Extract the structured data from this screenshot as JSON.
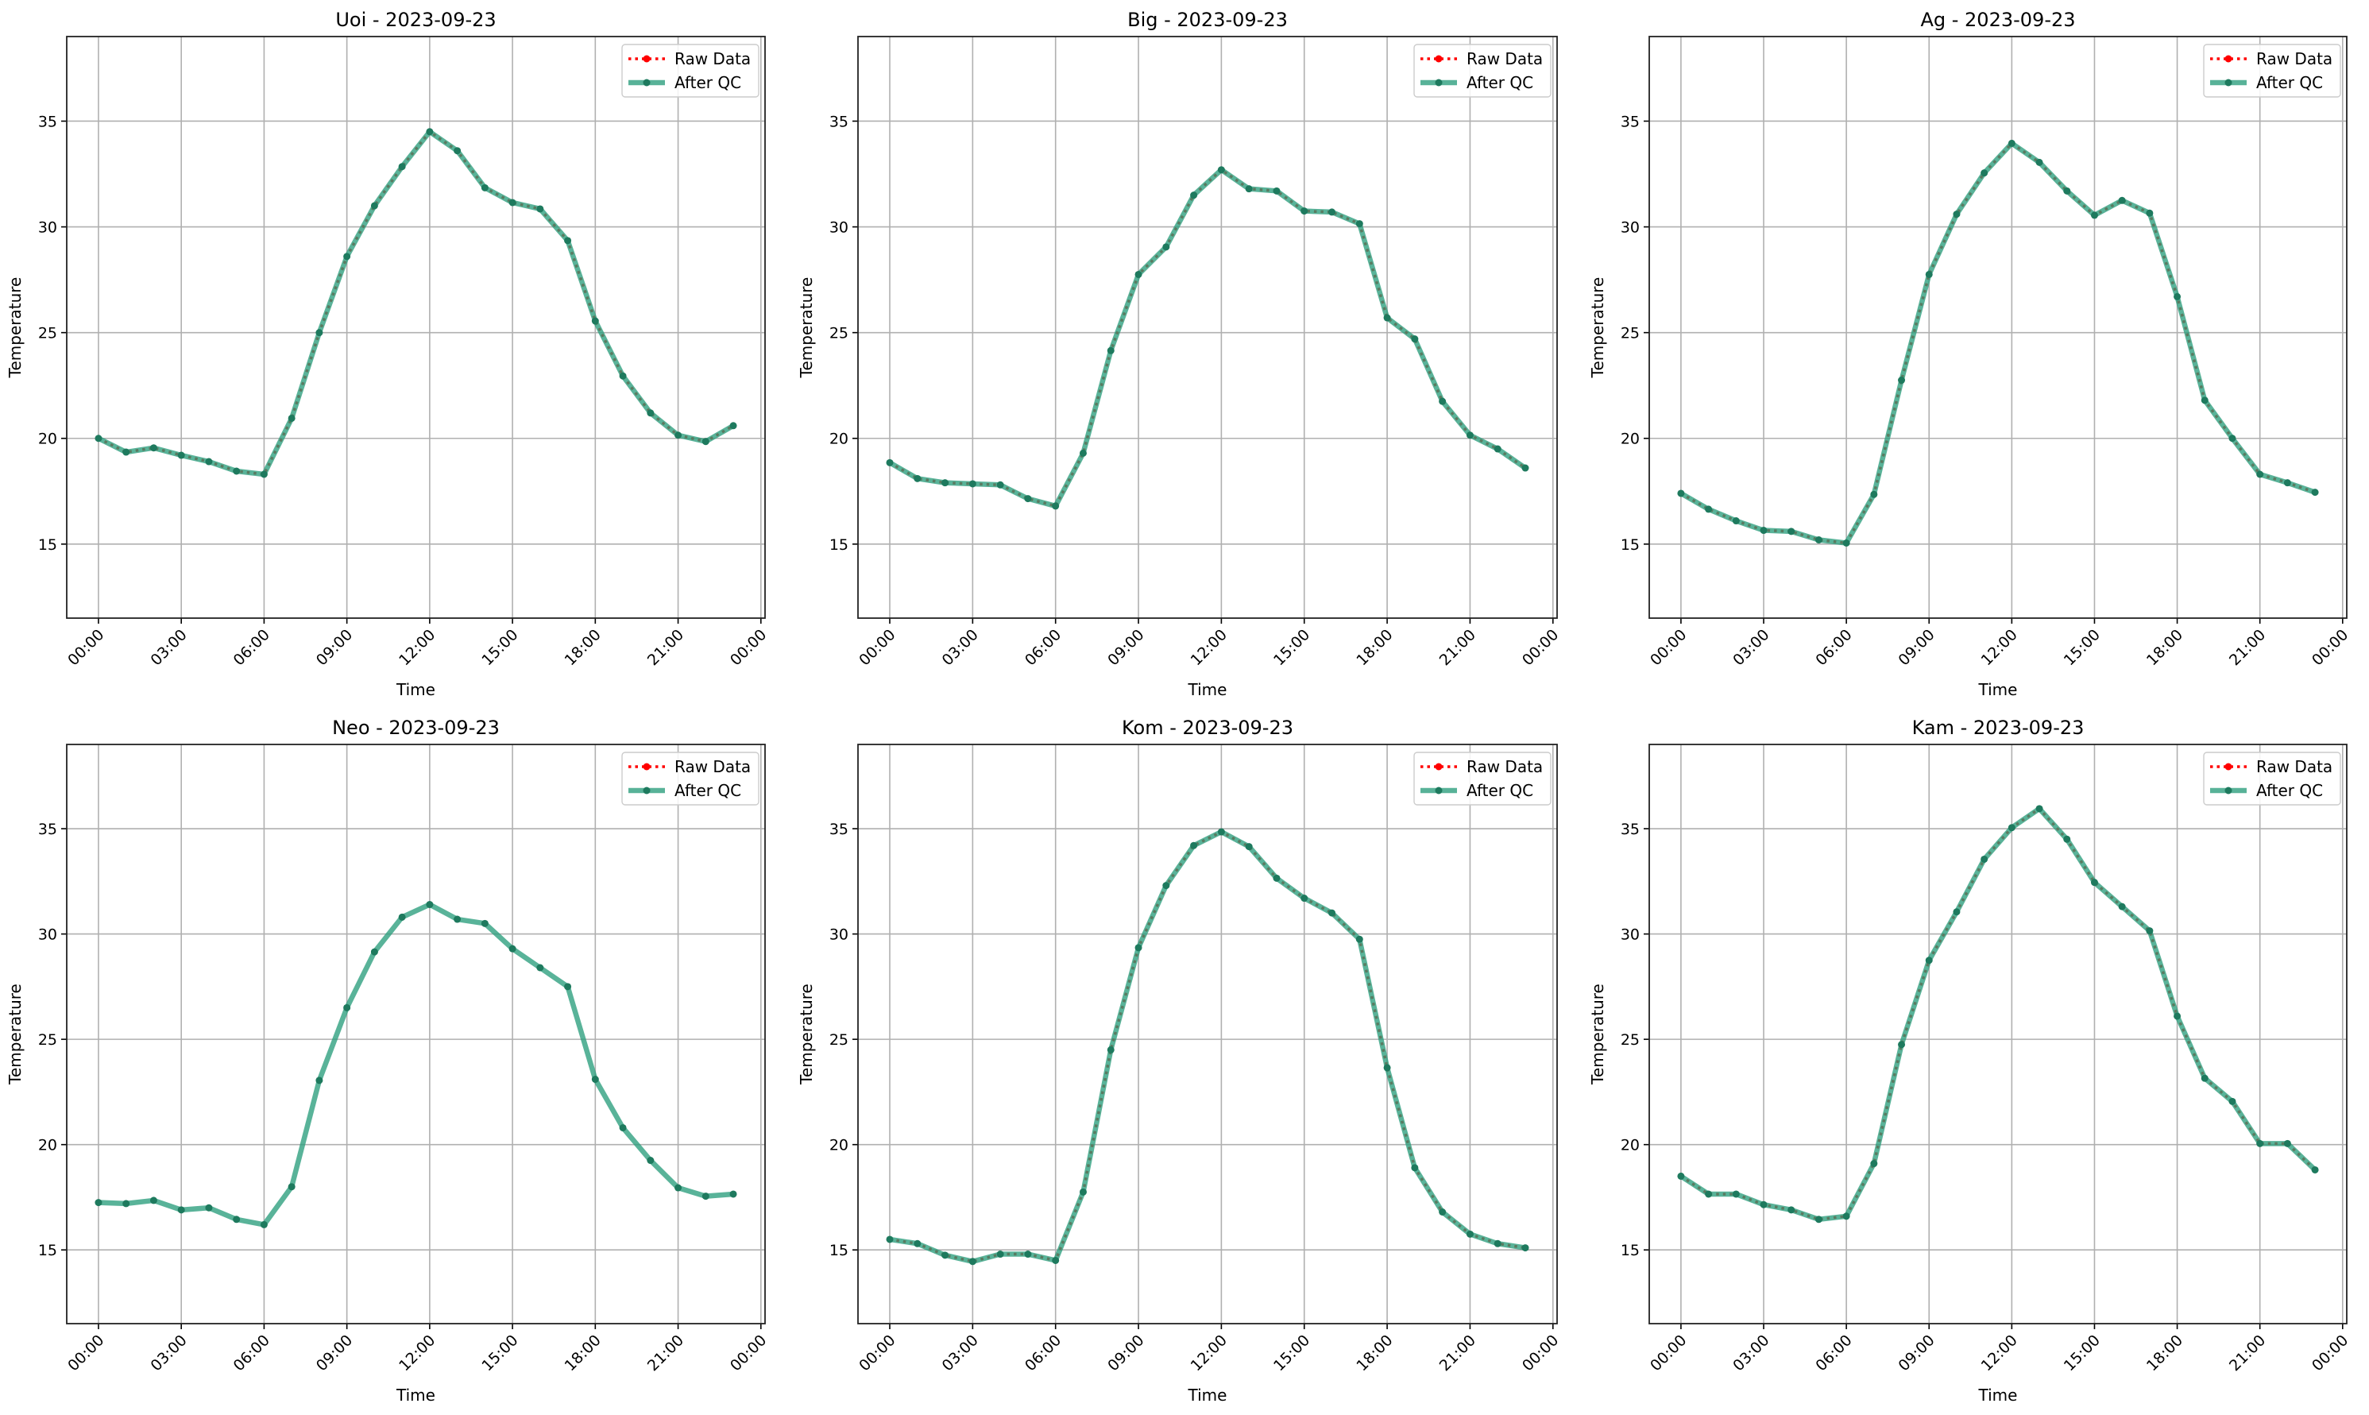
{
  "chart_data": [
    {
      "type": "line",
      "title": "Uoi - 2023-09-23",
      "xlabel": "Time",
      "ylabel": "Temperature",
      "x_hours": [
        0,
        1,
        2,
        3,
        4,
        5,
        6,
        7,
        8,
        9,
        10,
        11,
        12,
        13,
        14,
        15,
        16,
        17,
        18,
        19,
        20,
        21,
        22,
        23
      ],
      "xticks": [
        "00:00",
        "03:00",
        "06:00",
        "09:00",
        "12:00",
        "15:00",
        "18:00",
        "21:00",
        "00:00"
      ],
      "yticks": [
        15,
        20,
        25,
        30,
        35
      ],
      "xlim": [
        -1.15,
        24.15
      ],
      "ylim": [
        11.5,
        39
      ],
      "grid": true,
      "legend": "top-right",
      "series": [
        {
          "name": "Raw Data",
          "values": [
            20.0,
            19.35,
            19.55,
            19.2,
            18.9,
            18.45,
            18.3,
            20.95,
            25.0,
            28.6,
            31.0,
            32.85,
            34.5,
            33.6,
            31.85,
            31.15,
            30.85,
            29.35,
            25.55,
            22.95,
            21.2,
            20.15,
            19.85,
            20.6
          ]
        },
        {
          "name": "After QC",
          "values": [
            20.0,
            19.35,
            19.55,
            19.2,
            18.9,
            18.45,
            18.3,
            20.95,
            25.0,
            28.6,
            31.0,
            32.85,
            34.5,
            33.6,
            31.85,
            31.15,
            30.85,
            29.35,
            25.55,
            22.95,
            21.2,
            20.15,
            19.85,
            20.6
          ]
        }
      ]
    },
    {
      "type": "line",
      "title": "Big - 2023-09-23",
      "xlabel": "Time",
      "ylabel": "Temperature",
      "x_hours": [
        0,
        1,
        2,
        3,
        4,
        5,
        6,
        7,
        8,
        9,
        10,
        11,
        12,
        13,
        14,
        15,
        16,
        17,
        18,
        19,
        20,
        21,
        22,
        23
      ],
      "xticks": [
        "00:00",
        "03:00",
        "06:00",
        "09:00",
        "12:00",
        "15:00",
        "18:00",
        "21:00",
        "00:00"
      ],
      "yticks": [
        15,
        20,
        25,
        30,
        35
      ],
      "xlim": [
        -1.15,
        24.15
      ],
      "ylim": [
        11.5,
        39
      ],
      "grid": true,
      "legend": "top-right",
      "series": [
        {
          "name": "Raw Data",
          "values": [
            18.85,
            18.1,
            17.9,
            17.85,
            17.8,
            17.15,
            16.8,
            19.3,
            24.15,
            27.75,
            29.05,
            31.5,
            32.7,
            31.8,
            31.7,
            30.75,
            30.7,
            30.15,
            25.7,
            24.7,
            21.75,
            20.15,
            19.5,
            18.6
          ]
        },
        {
          "name": "After QC",
          "values": [
            18.85,
            18.1,
            17.9,
            17.85,
            17.8,
            17.15,
            16.8,
            19.3,
            24.15,
            27.75,
            29.05,
            31.5,
            32.7,
            31.8,
            31.7,
            30.75,
            30.7,
            30.15,
            25.7,
            24.7,
            21.75,
            20.15,
            19.5,
            18.6
          ]
        }
      ]
    },
    {
      "type": "line",
      "title": "Ag - 2023-09-23",
      "xlabel": "Time",
      "ylabel": "Temperature",
      "x_hours": [
        0,
        1,
        2,
        3,
        4,
        5,
        6,
        7,
        8,
        9,
        10,
        11,
        12,
        13,
        14,
        15,
        16,
        17,
        18,
        19,
        20,
        21,
        22,
        23
      ],
      "xticks": [
        "00:00",
        "03:00",
        "06:00",
        "09:00",
        "12:00",
        "15:00",
        "18:00",
        "21:00",
        "00:00"
      ],
      "yticks": [
        15,
        20,
        25,
        30,
        35
      ],
      "xlim": [
        -1.15,
        24.15
      ],
      "ylim": [
        11.5,
        39
      ],
      "grid": true,
      "legend": "top-right",
      "series": [
        {
          "name": "Raw Data",
          "values": [
            17.4,
            16.65,
            16.1,
            15.65,
            15.6,
            15.2,
            15.05,
            17.35,
            22.75,
            27.75,
            30.6,
            32.55,
            33.95,
            33.05,
            31.7,
            30.55,
            31.25,
            30.65,
            26.7,
            21.8,
            20.0,
            18.3,
            17.9,
            17.45
          ]
        },
        {
          "name": "After QC",
          "values": [
            17.4,
            16.65,
            16.1,
            15.65,
            15.6,
            15.2,
            15.05,
            17.35,
            22.75,
            27.75,
            30.6,
            32.55,
            33.95,
            33.05,
            31.7,
            30.55,
            31.25,
            30.65,
            26.7,
            21.8,
            20.0,
            18.3,
            17.9,
            17.45
          ]
        }
      ]
    },
    {
      "type": "line",
      "title": "Neo - 2023-09-23",
      "xlabel": "Time",
      "ylabel": "Temperature",
      "x_hours": [
        0,
        1,
        2,
        3,
        4,
        5,
        6,
        7,
        8,
        9,
        10,
        11,
        12,
        13,
        14,
        15,
        16,
        17,
        18,
        19,
        20,
        21,
        22,
        23
      ],
      "xticks": [
        "00:00",
        "03:00",
        "06:00",
        "09:00",
        "12:00",
        "15:00",
        "18:00",
        "21:00",
        "00:00"
      ],
      "yticks": [
        15,
        20,
        25,
        30,
        35
      ],
      "xlim": [
        -1.15,
        24.15
      ],
      "ylim": [
        11.5,
        39
      ],
      "grid": true,
      "legend": "top-right",
      "series": [
        {
          "name": "Raw Data",
          "values": []
        },
        {
          "name": "After QC",
          "values": [
            17.25,
            17.2,
            17.35,
            16.9,
            17.0,
            16.45,
            16.2,
            18.0,
            23.05,
            26.5,
            29.15,
            30.8,
            31.4,
            30.7,
            30.5,
            29.3,
            28.4,
            27.5,
            23.1,
            20.8,
            19.25,
            17.95,
            17.55,
            17.65
          ]
        }
      ]
    },
    {
      "type": "line",
      "title": "Kom - 2023-09-23",
      "xlabel": "Time",
      "ylabel": "Temperature",
      "x_hours": [
        0,
        1,
        2,
        3,
        4,
        5,
        6,
        7,
        8,
        9,
        10,
        11,
        12,
        13,
        14,
        15,
        16,
        17,
        18,
        19,
        20,
        21,
        22,
        23
      ],
      "xticks": [
        "00:00",
        "03:00",
        "06:00",
        "09:00",
        "12:00",
        "15:00",
        "18:00",
        "21:00",
        "00:00"
      ],
      "yticks": [
        15,
        20,
        25,
        30,
        35
      ],
      "xlim": [
        -1.15,
        24.15
      ],
      "ylim": [
        11.5,
        39
      ],
      "grid": true,
      "legend": "top-right",
      "series": [
        {
          "name": "Raw Data",
          "values": [
            15.5,
            15.3,
            14.75,
            14.45,
            14.8,
            14.8,
            14.5,
            17.75,
            24.5,
            29.35,
            32.3,
            34.2,
            34.85,
            34.15,
            32.65,
            31.7,
            31.0,
            29.75,
            23.65,
            18.9,
            16.8,
            15.75,
            15.3,
            15.1
          ]
        },
        {
          "name": "After QC",
          "values": [
            15.5,
            15.3,
            14.75,
            14.45,
            14.8,
            14.8,
            14.5,
            17.75,
            24.5,
            29.35,
            32.3,
            34.2,
            34.85,
            34.15,
            32.65,
            31.7,
            31.0,
            29.75,
            23.65,
            18.9,
            16.8,
            15.75,
            15.3,
            15.1
          ]
        }
      ]
    },
    {
      "type": "line",
      "title": "Kam - 2023-09-23",
      "xlabel": "Time",
      "ylabel": "Temperature",
      "x_hours": [
        0,
        1,
        2,
        3,
        4,
        5,
        6,
        7,
        8,
        9,
        10,
        11,
        12,
        13,
        14,
        15,
        16,
        17,
        18,
        19,
        20,
        21,
        22,
        23
      ],
      "xticks": [
        "00:00",
        "03:00",
        "06:00",
        "09:00",
        "12:00",
        "15:00",
        "18:00",
        "21:00",
        "00:00"
      ],
      "yticks": [
        15,
        20,
        25,
        30,
        35
      ],
      "xlim": [
        -1.15,
        24.15
      ],
      "ylim": [
        11.5,
        39
      ],
      "grid": true,
      "legend": "top-right",
      "series": [
        {
          "name": "Raw Data",
          "values": [
            18.5,
            17.65,
            17.65,
            17.15,
            16.9,
            16.45,
            16.6,
            19.1,
            24.75,
            28.75,
            31.05,
            33.55,
            35.05,
            35.95,
            34.5,
            32.45,
            31.3,
            30.15,
            26.1,
            23.15,
            22.05,
            20.05,
            20.05,
            18.8
          ]
        },
        {
          "name": "After QC",
          "values": [
            18.5,
            17.65,
            17.65,
            17.15,
            16.9,
            16.45,
            16.6,
            19.1,
            24.75,
            28.75,
            31.05,
            33.55,
            35.05,
            35.95,
            34.5,
            32.45,
            31.3,
            30.15,
            26.1,
            23.15,
            22.05,
            20.05,
            20.05,
            18.8
          ]
        }
      ]
    }
  ],
  "colors": {
    "raw": "#ff0000",
    "qc": "#2a9d7c",
    "qc_marker": "#1e7a5e",
    "grid": "#b0b0b0"
  }
}
